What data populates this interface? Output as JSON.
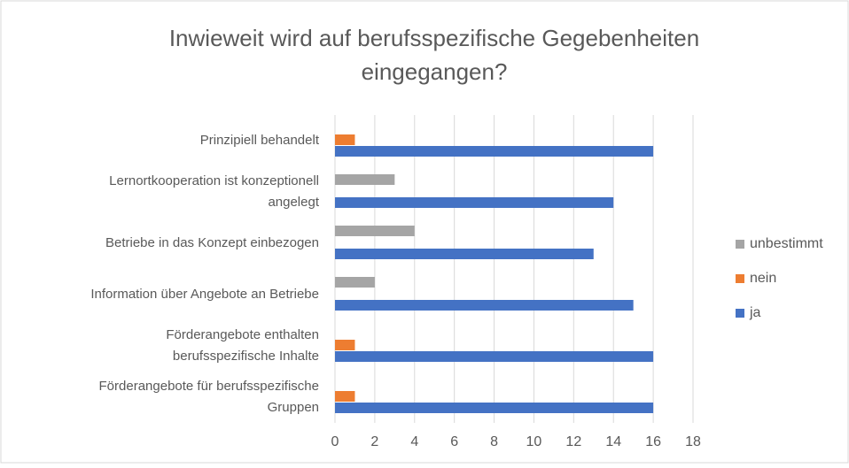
{
  "chart_data": {
    "type": "hbar",
    "title": "Inwieweit wird auf berufsspezifische  Gegebenheiten\neingegangen?",
    "categories": [
      "Prinzipiell behandelt",
      "Lernortkooperation ist konzeptionell\nangelegt",
      "Betriebe in das Konzept einbezogen",
      "Information über Angebote an Betriebe",
      "Förderangebote enthalten\nberufsspezifische Inhalte",
      "Förderangebote für berufsspezifische\nGruppen"
    ],
    "series": [
      {
        "name": "unbestimmt",
        "color": "#a5a5a5",
        "values": [
          0,
          3,
          4,
          2,
          0,
          0
        ]
      },
      {
        "name": "nein",
        "color": "#ed7d31",
        "values": [
          1,
          0,
          0,
          0,
          1,
          1
        ]
      },
      {
        "name": "ja",
        "color": "#4472c4",
        "values": [
          16,
          14,
          13,
          15,
          16,
          16
        ]
      }
    ],
    "xlim": [
      0,
      18
    ],
    "xticks": [
      0,
      2,
      4,
      6,
      8,
      10,
      12,
      14,
      16,
      18
    ],
    "grid": true,
    "legend": "right"
  }
}
